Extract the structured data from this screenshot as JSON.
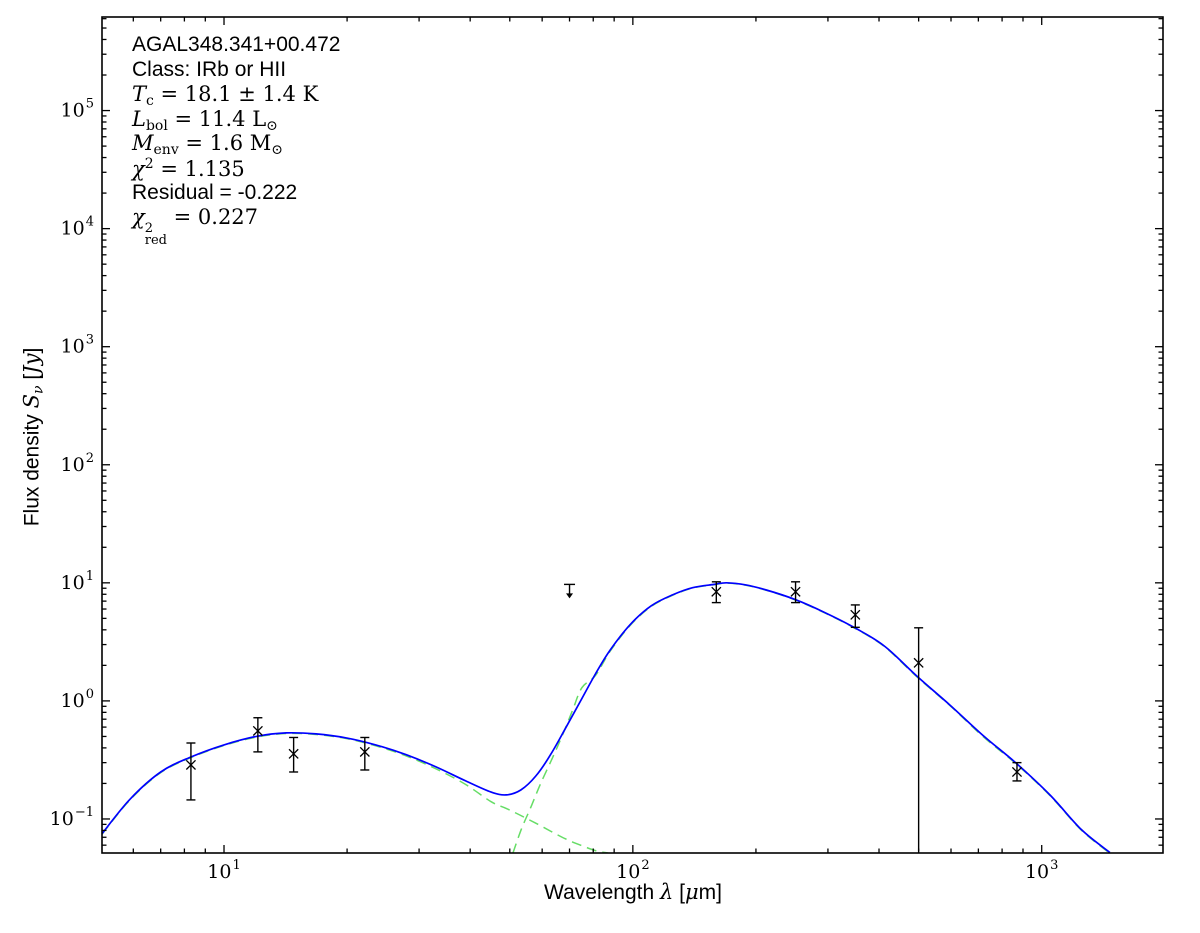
{
  "figure": {
    "background": "#ffffff",
    "frame_color": "#000000"
  },
  "annotation": {
    "lines": [
      {
        "name": "source-name",
        "segments": [
          {
            "t": "AGAL348.341+00.472",
            "s": "sans"
          }
        ]
      },
      {
        "name": "classification",
        "segments": [
          {
            "t": "Class: IRb or HII",
            "s": "sans"
          }
        ]
      },
      {
        "name": "dust-temperature",
        "segments": [
          {
            "t": "T",
            "s": "mi"
          },
          {
            "t": "c",
            "s": "sub"
          },
          {
            "t": " = 18.1 ± 1.4 K",
            "s": "mr"
          }
        ]
      },
      {
        "name": "bolometric-luminosity",
        "segments": [
          {
            "t": "L",
            "s": "mi"
          },
          {
            "t": "bol",
            "s": "sub"
          },
          {
            "t": " = 11.4 L",
            "s": "mr"
          },
          {
            "t": "⊙",
            "s": "sub"
          }
        ]
      },
      {
        "name": "envelope-mass",
        "segments": [
          {
            "t": "M",
            "s": "mi"
          },
          {
            "t": "env",
            "s": "sub"
          },
          {
            "t": " = 1.6 M",
            "s": "mr"
          },
          {
            "t": "⊙",
            "s": "sub"
          }
        ]
      },
      {
        "name": "chi-squared",
        "segments": [
          {
            "t": "χ",
            "s": "mi"
          },
          {
            "t": "2",
            "s": "sup"
          },
          {
            "t": " = 1.135",
            "s": "mr"
          }
        ]
      },
      {
        "name": "residual",
        "segments": [
          {
            "t": "Residual = -0.222",
            "s": "sans"
          }
        ]
      },
      {
        "name": "reduced-chi-squared",
        "segments": [
          {
            "t": "χ",
            "s": "mi"
          },
          {
            "t": "2|red",
            "s": "stack"
          },
          {
            "t": " = 0.227",
            "s": "mr"
          }
        ]
      }
    ]
  },
  "axis_labels": {
    "x": {
      "segments": [
        {
          "t": "Wavelength ",
          "s": "sans"
        },
        {
          "t": "λ",
          "s": "mi"
        },
        {
          "t": " [",
          "s": "sans"
        },
        {
          "t": "μ",
          "s": "mi"
        },
        {
          "t": "m]",
          "s": "sans"
        }
      ]
    },
    "y": {
      "segments": [
        {
          "t": "Flux density ",
          "s": "sans"
        },
        {
          "t": "S",
          "s": "mi"
        },
        {
          "t": "ν",
          "s": "subi"
        },
        {
          "t": " [",
          "s": "sans"
        },
        {
          "t": "Jy",
          "s": "mi"
        },
        {
          "t": "]",
          "s": "sans"
        }
      ]
    }
  },
  "chart_data": {
    "type": "line",
    "title": "",
    "xlabel": "Wavelength λ [μm]",
    "ylabel": "Flux density S_ν [Jy]",
    "x_scale": "log",
    "y_scale": "log",
    "xlim": [
      5.03,
      1980
    ],
    "ylim": [
      0.0515,
      620000
    ],
    "grid": false,
    "legend": "none",
    "x_major_ticks": [
      10,
      100,
      1000
    ],
    "y_major_ticks": [
      0.1,
      1,
      10,
      100,
      1000,
      10000,
      100000
    ],
    "colors": {
      "model": "#0000ff",
      "components": "#66dd66",
      "data": "#000000"
    },
    "series": [
      {
        "name": "warm-component",
        "style": "dashed",
        "color": "#66dd66",
        "points": [
          [
            5.03,
            0.0742
          ],
          [
            5.9,
            0.146
          ],
          [
            7.0,
            0.247
          ],
          [
            8.3,
            0.331
          ],
          [
            10,
            0.419
          ],
          [
            12,
            0.494
          ],
          [
            14.2,
            0.53
          ],
          [
            16.8,
            0.519
          ],
          [
            19.9,
            0.48
          ],
          [
            23.5,
            0.417
          ],
          [
            27.9,
            0.342
          ],
          [
            33,
            0.266
          ],
          [
            39,
            0.196
          ],
          [
            45,
            0.14
          ],
          [
            49,
            0.123
          ],
          [
            53.2,
            0.107
          ],
          [
            57.9,
            0.092
          ],
          [
            62.9,
            0.079
          ],
          [
            68.3,
            0.068
          ],
          [
            74.5,
            0.06
          ],
          [
            81,
            0.054
          ],
          [
            87,
            0.0515
          ]
        ]
      },
      {
        "name": "cold-component",
        "style": "dashed",
        "color": "#66dd66",
        "points": [
          [
            50.9,
            0.0515
          ],
          [
            53.3,
            0.081
          ],
          [
            56.3,
            0.126
          ],
          [
            59.5,
            0.2
          ],
          [
            63.6,
            0.33
          ],
          [
            67.3,
            0.515
          ],
          [
            71,
            0.81
          ],
          [
            75,
            1.29
          ],
          [
            81,
            1.64
          ],
          [
            88,
            2.64
          ],
          [
            98.9,
            4.43
          ],
          [
            111,
            6.33
          ],
          [
            125,
            7.84
          ],
          [
            140,
            9.04
          ],
          [
            158,
            9.64
          ],
          [
            169.5,
            9.94
          ],
          [
            189,
            9.54
          ],
          [
            212,
            8.64
          ],
          [
            250,
            7.14
          ],
          [
            295,
            5.55
          ],
          [
            349,
            4.12
          ],
          [
            412,
            2.89
          ],
          [
            497,
            1.58
          ],
          [
            597,
            0.91
          ],
          [
            723,
            0.49
          ],
          [
            863,
            0.296
          ],
          [
            1047,
            0.158
          ],
          [
            1252,
            0.08
          ],
          [
            1468,
            0.0512
          ]
        ]
      },
      {
        "name": "total-model-fit",
        "style": "solid",
        "color": "#0000ff",
        "points": [
          [
            5.03,
            0.075
          ],
          [
            5.9,
            0.148
          ],
          [
            7.0,
            0.25
          ],
          [
            8.3,
            0.335
          ],
          [
            10,
            0.424
          ],
          [
            12,
            0.5
          ],
          [
            14.2,
            0.536
          ],
          [
            16.8,
            0.525
          ],
          [
            19.9,
            0.486
          ],
          [
            23.5,
            0.424
          ],
          [
            27.9,
            0.35
          ],
          [
            33,
            0.276
          ],
          [
            39,
            0.21
          ],
          [
            45,
            0.169
          ],
          [
            49,
            0.16
          ],
          [
            53.2,
            0.176
          ],
          [
            57.9,
            0.231
          ],
          [
            62.9,
            0.35
          ],
          [
            68.3,
            0.58
          ],
          [
            74.5,
            1.0
          ],
          [
            81,
            1.69
          ],
          [
            88,
            2.7
          ],
          [
            98.9,
            4.5
          ],
          [
            111,
            6.4
          ],
          [
            125,
            7.9
          ],
          [
            140,
            9.1
          ],
          [
            158,
            9.7
          ],
          [
            169.5,
            10.0
          ],
          [
            189,
            9.6
          ],
          [
            212,
            8.7
          ],
          [
            250,
            7.2
          ],
          [
            295,
            5.6
          ],
          [
            349,
            4.16
          ],
          [
            412,
            2.92
          ],
          [
            497,
            1.6
          ],
          [
            597,
            0.92
          ],
          [
            723,
            0.5
          ],
          [
            863,
            0.3
          ],
          [
            1047,
            0.16
          ],
          [
            1252,
            0.081
          ],
          [
            1468,
            0.052
          ]
        ]
      }
    ],
    "data_points": [
      {
        "x": 8.3,
        "y": 0.287,
        "ylo": 0.145,
        "yhi": 0.44
      },
      {
        "x": 12.1,
        "y": 0.557,
        "ylo": 0.37,
        "yhi": 0.72
      },
      {
        "x": 14.8,
        "y": 0.356,
        "ylo": 0.25,
        "yhi": 0.49
      },
      {
        "x": 22.1,
        "y": 0.37,
        "ylo": 0.26,
        "yhi": 0.49
      },
      {
        "x": 160,
        "y": 8.4,
        "ylo": 6.8,
        "yhi": 10.2
      },
      {
        "x": 250,
        "y": 8.4,
        "ylo": 6.8,
        "yhi": 10.2
      },
      {
        "x": 350,
        "y": 5.36,
        "ylo": 4.2,
        "yhi": 6.5
      },
      {
        "x": 500,
        "y": 2.1,
        "ylo": 0.053,
        "yhi": 4.16,
        "no_bottom_cap": true
      },
      {
        "x": 870,
        "y": 0.25,
        "ylo": 0.21,
        "yhi": 0.3
      }
    ],
    "upper_limits": [
      {
        "x": 70,
        "y": 9.7
      }
    ]
  }
}
